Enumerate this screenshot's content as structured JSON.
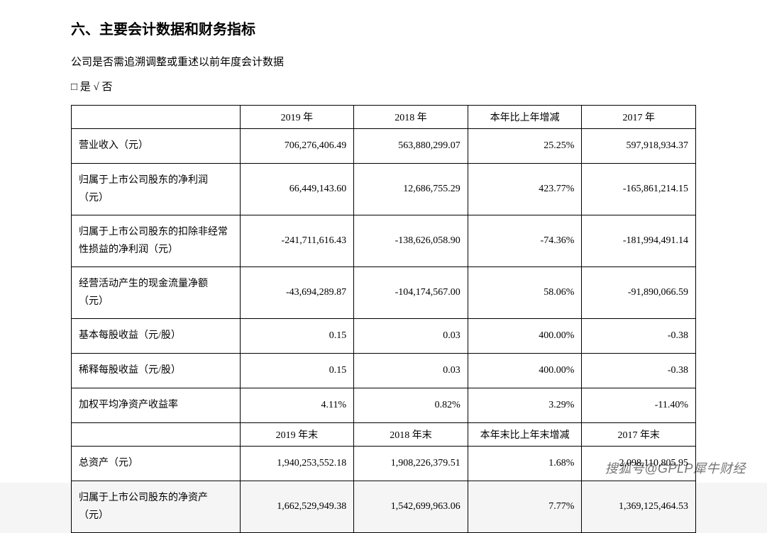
{
  "heading": "六、主要会计数据和财务指标",
  "subline": "公司是否需追溯调整或重述以前年度会计数据",
  "checkline": "□ 是 √ 否",
  "table": {
    "header1": {
      "c1": "2019 年",
      "c2": "2018 年",
      "c3": "本年比上年增减",
      "c4": "2017 年"
    },
    "rows1": [
      {
        "label": "营业收入（元）",
        "c1": "706,276,406.49",
        "c2": "563,880,299.07",
        "c3": "25.25%",
        "c4": "597,918,934.37",
        "h": "short1"
      },
      {
        "label": "归属于上市公司股东的净利润（元）",
        "c1": "66,449,143.60",
        "c2": "12,686,755.29",
        "c3": "423.77%",
        "c4": "-165,861,214.15",
        "h": "tall2"
      },
      {
        "label": "归属于上市公司股东的扣除非经常性损益的净利润（元）",
        "c1": "-241,711,616.43",
        "c2": "-138,626,058.90",
        "c3": "-74.36%",
        "c4": "-181,994,491.14",
        "h": "tall2"
      },
      {
        "label": "经营活动产生的现金流量净额（元）",
        "c1": "-43,694,289.87",
        "c2": "-104,174,567.00",
        "c3": "58.06%",
        "c4": "-91,890,066.59",
        "h": "tall2"
      },
      {
        "label": "基本每股收益（元/股）",
        "c1": "0.15",
        "c2": "0.03",
        "c3": "400.00%",
        "c4": "-0.38",
        "h": "short1"
      },
      {
        "label": "稀释每股收益（元/股）",
        "c1": "0.15",
        "c2": "0.03",
        "c3": "400.00%",
        "c4": "-0.38",
        "h": "short1"
      },
      {
        "label": "加权平均净资产收益率",
        "c1": "4.11%",
        "c2": "0.82%",
        "c3": "3.29%",
        "c4": "-11.40%",
        "h": "short1"
      }
    ],
    "header2": {
      "c1": "2019 年末",
      "c2": "2018 年末",
      "c3": "本年末比上年末增减",
      "c4": "2017 年末"
    },
    "rows2": [
      {
        "label": "总资产（元）",
        "c1": "1,940,253,552.18",
        "c2": "1,908,226,379.51",
        "c3": "1.68%",
        "c4": "2,098,110,805.95",
        "h": "short1"
      },
      {
        "label": "归属于上市公司股东的净资产（元）",
        "c1": "1,662,529,949.38",
        "c2": "1,542,699,963.06",
        "c3": "7.77%",
        "c4": "1,369,125,464.53",
        "h": "tall2"
      }
    ]
  },
  "watermark": "搜狐号@GPLP犀牛财经",
  "style": {
    "bg": "#ffffff",
    "border": "#000000",
    "text": "#000000",
    "heading_fontsize": 20,
    "body_fontsize": 15,
    "cell_fontsize": 14
  }
}
